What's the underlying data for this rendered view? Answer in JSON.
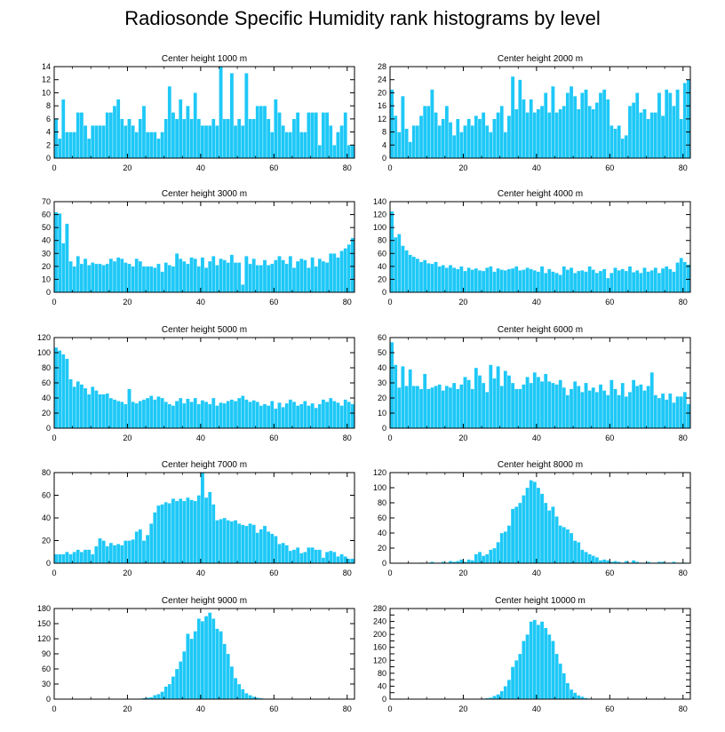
{
  "title": "Radiosonde Specific Humidity rank histograms by level",
  "bar_color": "#1ec8f7",
  "edge_color": "#000000",
  "chart_data": [
    {
      "type": "bar",
      "title": "Center height 1000 m",
      "xlabel": "",
      "ylabel": "",
      "xlim": [
        0,
        82
      ],
      "ylim": [
        0,
        14
      ],
      "xticks": [
        0,
        20,
        40,
        60,
        80
      ],
      "yticks": [
        0,
        2,
        4,
        6,
        8,
        10,
        12,
        14
      ],
      "values": [
        6,
        3,
        9,
        4,
        4,
        4,
        7,
        7,
        5,
        3,
        5,
        5,
        5,
        5,
        7,
        7,
        8,
        9,
        6,
        5,
        6,
        5,
        4,
        6,
        8,
        4,
        4,
        4,
        3,
        4,
        6,
        11,
        7,
        6,
        9,
        6,
        8,
        6,
        10,
        6,
        5,
        5,
        5,
        6,
        5,
        14,
        6,
        6,
        13,
        5,
        6,
        5,
        13,
        6,
        6,
        8,
        8,
        8,
        6,
        4,
        9,
        7,
        5,
        4,
        4,
        6,
        7,
        4,
        4,
        7,
        7,
        7,
        2,
        7,
        7,
        5,
        2,
        4,
        5,
        7,
        2,
        2
      ]
    },
    {
      "type": "bar",
      "title": "Center height 2000 m",
      "xlabel": "",
      "ylabel": "",
      "xlim": [
        0,
        82
      ],
      "ylim": [
        0,
        28
      ],
      "xticks": [
        0,
        20,
        40,
        60,
        80
      ],
      "yticks": [
        0,
        4,
        8,
        12,
        16,
        20,
        24,
        28
      ],
      "values": [
        21,
        13,
        8,
        19,
        9,
        5,
        10,
        10,
        13,
        16,
        16,
        21,
        14,
        10,
        12,
        16,
        11,
        7,
        12,
        8,
        10,
        12,
        10,
        13,
        12,
        14,
        10,
        8,
        12,
        14,
        16,
        8,
        13,
        25,
        15,
        24,
        18,
        14,
        18,
        14,
        15,
        16,
        20,
        14,
        22,
        14,
        15,
        16,
        20,
        22,
        19,
        15,
        20,
        21,
        16,
        15,
        17,
        20,
        21,
        18,
        10,
        9,
        10,
        6,
        7,
        16,
        17,
        20,
        14,
        15,
        12,
        14,
        14,
        20,
        13,
        21,
        20,
        16,
        21,
        12,
        23,
        24
      ]
    },
    {
      "type": "bar",
      "title": "Center height 3000 m",
      "xlabel": "",
      "ylabel": "",
      "xlim": [
        0,
        82
      ],
      "ylim": [
        0,
        70
      ],
      "xticks": [
        0,
        20,
        40,
        60,
        80
      ],
      "yticks": [
        0,
        10,
        20,
        30,
        40,
        50,
        60,
        70
      ],
      "values": [
        62,
        61,
        38,
        53,
        24,
        20,
        28,
        22,
        26,
        21,
        23,
        22,
        22,
        21,
        22,
        26,
        24,
        27,
        26,
        23,
        22,
        20,
        26,
        24,
        20,
        20,
        20,
        19,
        22,
        16,
        23,
        21,
        20,
        30,
        26,
        24,
        22,
        27,
        26,
        20,
        27,
        19,
        24,
        28,
        21,
        26,
        25,
        23,
        29,
        23,
        23,
        6,
        28,
        22,
        26,
        21,
        21,
        25,
        21,
        22,
        25,
        28,
        25,
        22,
        28,
        19,
        24,
        26,
        25,
        19,
        27,
        20,
        26,
        24,
        23,
        30,
        30,
        27,
        32,
        34,
        37,
        42
      ]
    },
    {
      "type": "bar",
      "title": "Center height 4000 m",
      "xlabel": "",
      "ylabel": "",
      "xlim": [
        0,
        82
      ],
      "ylim": [
        0,
        140
      ],
      "xticks": [
        0,
        20,
        40,
        60,
        80
      ],
      "yticks": [
        0,
        20,
        40,
        60,
        80,
        100,
        120,
        140
      ],
      "values": [
        125,
        85,
        90,
        72,
        65,
        58,
        55,
        52,
        47,
        50,
        45,
        44,
        47,
        40,
        42,
        38,
        42,
        38,
        36,
        40,
        33,
        38,
        35,
        37,
        34,
        33,
        38,
        40,
        32,
        37,
        35,
        34,
        36,
        37,
        40,
        34,
        35,
        38,
        36,
        34,
        32,
        40,
        30,
        36,
        32,
        30,
        27,
        40,
        35,
        38,
        30,
        33,
        34,
        32,
        40,
        35,
        30,
        33,
        36,
        22,
        30,
        38,
        34,
        36,
        33,
        40,
        31,
        34,
        30,
        38,
        32,
        34,
        38,
        30,
        37,
        40,
        36,
        32,
        46,
        53,
        47,
        43
      ]
    },
    {
      "type": "bar",
      "title": "Center height 5000 m",
      "xlabel": "",
      "ylabel": "",
      "xlim": [
        0,
        82
      ],
      "ylim": [
        0,
        120
      ],
      "xticks": [
        0,
        20,
        40,
        60,
        80
      ],
      "yticks": [
        0,
        20,
        40,
        60,
        80,
        100,
        120
      ],
      "values": [
        107,
        103,
        98,
        92,
        65,
        55,
        62,
        58,
        53,
        45,
        55,
        50,
        45,
        45,
        46,
        40,
        38,
        36,
        35,
        32,
        52,
        35,
        33,
        36,
        38,
        40,
        43,
        38,
        42,
        40,
        35,
        32,
        30,
        36,
        40,
        33,
        39,
        35,
        40,
        32,
        37,
        35,
        32,
        40,
        30,
        34,
        33,
        36,
        38,
        36,
        40,
        43,
        38,
        35,
        37,
        35,
        30,
        32,
        30,
        36,
        26,
        34,
        28,
        33,
        38,
        35,
        30,
        32,
        36,
        30,
        33,
        27,
        32,
        38,
        35,
        40,
        36,
        34,
        30,
        38,
        35,
        32
      ]
    },
    {
      "type": "bar",
      "title": "Center height 6000 m",
      "xlabel": "",
      "ylabel": "",
      "xlim": [
        0,
        82
      ],
      "ylim": [
        0,
        60
      ],
      "xticks": [
        0,
        20,
        40,
        60,
        80
      ],
      "yticks": [
        0,
        10,
        20,
        30,
        40,
        50,
        60
      ],
      "values": [
        57,
        42,
        27,
        41,
        28,
        39,
        28,
        28,
        26,
        36,
        26,
        27,
        28,
        29,
        25,
        28,
        27,
        30,
        26,
        29,
        34,
        32,
        26,
        40,
        35,
        30,
        24,
        42,
        33,
        41,
        28,
        38,
        35,
        30,
        26,
        26,
        29,
        34,
        30,
        37,
        34,
        31,
        36,
        31,
        30,
        29,
        32,
        27,
        22,
        26,
        31,
        28,
        24,
        30,
        25,
        27,
        24,
        29,
        25,
        22,
        32,
        26,
        22,
        30,
        21,
        24,
        32,
        28,
        29,
        25,
        28,
        37,
        22,
        20,
        23,
        19,
        23,
        17,
        21,
        21,
        24,
        16
      ]
    },
    {
      "type": "bar",
      "title": "Center height 7000 m",
      "xlabel": "",
      "ylabel": "",
      "xlim": [
        0,
        82
      ],
      "ylim": [
        0,
        80
      ],
      "xticks": [
        0,
        20,
        40,
        60,
        80
      ],
      "yticks": [
        0,
        20,
        40,
        60,
        80
      ],
      "values": [
        8,
        8,
        8,
        10,
        8,
        10,
        12,
        10,
        12,
        12,
        8,
        15,
        22,
        20,
        15,
        18,
        16,
        17,
        16,
        20,
        20,
        21,
        28,
        30,
        20,
        25,
        35,
        45,
        51,
        52,
        54,
        53,
        57,
        55,
        57,
        55,
        58,
        56,
        55,
        60,
        80,
        58,
        63,
        52,
        38,
        39,
        40,
        38,
        37,
        38,
        35,
        34,
        33,
        35,
        34,
        27,
        30,
        33,
        28,
        26,
        24,
        17,
        18,
        16,
        11,
        12,
        14,
        9,
        10,
        14,
        14,
        12,
        12,
        5,
        10,
        11,
        10,
        6,
        8,
        6,
        4,
        4
      ]
    },
    {
      "type": "bar",
      "title": "Center height 8000 m",
      "xlabel": "",
      "ylabel": "",
      "xlim": [
        0,
        82
      ],
      "ylim": [
        0,
        120
      ],
      "xticks": [
        0,
        20,
        40,
        60,
        80
      ],
      "yticks": [
        0,
        20,
        40,
        60,
        80,
        100,
        120
      ],
      "values": [
        0,
        0,
        0,
        0,
        0,
        0,
        0,
        0,
        1,
        0,
        1,
        2,
        1,
        1,
        2,
        1,
        3,
        2,
        3,
        5,
        2,
        5,
        4,
        12,
        15,
        10,
        12,
        18,
        20,
        28,
        40,
        42,
        50,
        72,
        75,
        80,
        90,
        100,
        110,
        108,
        100,
        92,
        80,
        70,
        75,
        62,
        50,
        48,
        45,
        40,
        30,
        28,
        18,
        15,
        12,
        10,
        8,
        4,
        5,
        4,
        2,
        3,
        2,
        1,
        3,
        1,
        4,
        2,
        1,
        1,
        2,
        1,
        1,
        2,
        2,
        1,
        1,
        2,
        1,
        1,
        1,
        0
      ]
    },
    {
      "type": "bar",
      "title": "Center height 9000 m",
      "xlabel": "",
      "ylabel": "",
      "xlim": [
        0,
        82
      ],
      "ylim": [
        0,
        180
      ],
      "xticks": [
        0,
        20,
        40,
        60,
        80
      ],
      "yticks": [
        0,
        30,
        60,
        90,
        120,
        150,
        180
      ],
      "values": [
        0,
        0,
        0,
        0,
        0,
        0,
        0,
        0,
        0,
        0,
        0,
        0,
        0,
        0,
        0,
        0,
        0,
        0,
        0,
        1,
        0,
        1,
        1,
        1,
        2,
        3,
        4,
        8,
        10,
        15,
        25,
        30,
        45,
        60,
        75,
        95,
        130,
        120,
        135,
        160,
        155,
        165,
        172,
        160,
        140,
        135,
        110,
        90,
        65,
        42,
        30,
        20,
        12,
        8,
        5,
        3,
        2,
        1,
        1,
        1,
        0,
        0,
        0,
        0,
        0,
        0,
        0,
        0,
        0,
        0,
        0,
        0,
        0,
        0,
        0,
        0,
        0,
        0,
        0,
        0,
        0,
        0
      ]
    },
    {
      "type": "bar",
      "title": "Center height 10000 m",
      "xlabel": "",
      "ylabel": "",
      "xlim": [
        0,
        82
      ],
      "ylim": [
        0,
        280
      ],
      "xticks": [
        0,
        20,
        40,
        60,
        80
      ],
      "yticks": [
        0,
        20,
        40,
        60,
        80,
        100,
        120,
        140,
        160,
        180,
        200,
        220,
        240,
        260,
        280
      ],
      "yticklabels": [
        "0",
        "",
        "40",
        "",
        "80",
        "",
        "120",
        "",
        "160",
        "",
        "200",
        "",
        "240",
        "",
        "280"
      ],
      "values": [
        0,
        0,
        0,
        0,
        0,
        0,
        0,
        0,
        0,
        0,
        0,
        0,
        0,
        0,
        0,
        0,
        0,
        0,
        0,
        0,
        0,
        0,
        0,
        0,
        1,
        2,
        3,
        5,
        10,
        15,
        25,
        40,
        60,
        100,
        120,
        140,
        180,
        200,
        240,
        245,
        230,
        240,
        220,
        200,
        180,
        140,
        110,
        80,
        50,
        30,
        20,
        12,
        8,
        4,
        2,
        1,
        1,
        0,
        0,
        0,
        0,
        0,
        0,
        0,
        0,
        0,
        0,
        0,
        0,
        0,
        0,
        0,
        0,
        0,
        0,
        0,
        0,
        0,
        0,
        0,
        0,
        0
      ]
    }
  ]
}
